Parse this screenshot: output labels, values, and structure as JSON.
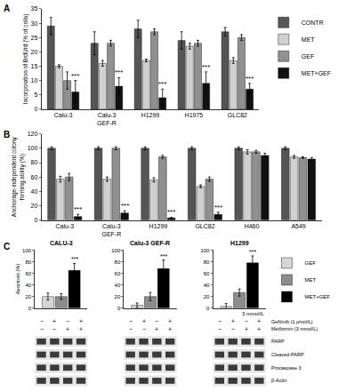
{
  "chart_data": [
    {
      "type": "bar",
      "panel_label": "A",
      "y_label": "Incorporation of BrdUrd (% of cells)",
      "categories": [
        "Calu-3",
        "Calu-3\nGEF-R",
        "H1299",
        "H1975",
        "GLC82"
      ],
      "series": [
        {
          "name": "CONTR",
          "color": "#555555",
          "values": [
            29,
            23,
            28,
            24,
            27
          ],
          "errors": [
            3,
            4,
            3,
            3,
            1.5
          ]
        },
        {
          "name": "MET",
          "color": "#d0d0d0",
          "values": [
            15,
            16,
            17,
            22,
            17
          ],
          "errors": [
            0.5,
            1,
            0.5,
            1,
            1
          ]
        },
        {
          "name": "GEF",
          "color": "#909090",
          "values": [
            10,
            23,
            27,
            23,
            25
          ],
          "errors": [
            3,
            1,
            1,
            1,
            1
          ]
        },
        {
          "name": "MET+GEF",
          "color": "#111111",
          "values": [
            6,
            8,
            4,
            9,
            7
          ],
          "errors": [
            4,
            3,
            3,
            4,
            2
          ],
          "annotations": [
            "***",
            "***",
            "***",
            "***",
            "***"
          ]
        }
      ],
      "ylim": [
        0,
        35
      ],
      "yticks": [
        0,
        5,
        10,
        15,
        20,
        25,
        30,
        35
      ],
      "legend": "right"
    },
    {
      "type": "bar",
      "panel_label": "B",
      "y_label": "Anchorage-independent colony\nforming ability (%)",
      "categories": [
        "Calu-3",
        "Calu-3\nGEF-R",
        "H1299",
        "GLC82",
        "H460",
        "A549"
      ],
      "series": [
        {
          "color": "#555555",
          "values": [
            100,
            100,
            100,
            100,
            100,
            100
          ],
          "errors": [
            2,
            2,
            2,
            2,
            2,
            2
          ]
        },
        {
          "color": "#d0d0d0",
          "values": [
            57,
            57,
            56,
            47,
            95,
            88
          ],
          "errors": [
            4,
            3,
            3,
            2,
            3,
            2
          ]
        },
        {
          "color": "#909090",
          "values": [
            60,
            100,
            88,
            57,
            95,
            87
          ],
          "errors": [
            5,
            2,
            2,
            3,
            2,
            1
          ]
        },
        {
          "color": "#111111",
          "values": [
            5,
            10,
            3,
            8,
            90,
            85
          ],
          "errors": [
            3,
            3,
            1,
            3,
            3,
            2
          ],
          "annotations": [
            "***",
            "***",
            "***",
            "***",
            null,
            null
          ]
        }
      ],
      "ylim": [
        0,
        120
      ],
      "yticks": [
        0,
        20,
        40,
        60,
        80,
        100,
        120
      ]
    },
    {
      "type": "bar",
      "panel_label": "C",
      "title": "CALU-3",
      "y_label": "Apoptosis (%)",
      "series": [
        {
          "color": "#d6d6d6",
          "values": [
            20
          ],
          "errors": [
            6
          ]
        },
        {
          "color": "#8c8c8c",
          "values": [
            20
          ],
          "errors": [
            5
          ]
        },
        {
          "color": "#000000",
          "values": [
            65
          ],
          "errors": [
            12
          ],
          "annotations": [
            "***"
          ]
        }
      ],
      "ylim": [
        0,
        100
      ],
      "yticks": [
        0,
        20,
        40,
        60,
        80,
        100
      ],
      "tick_labels": "y"
    },
    {
      "type": "bar",
      "title": "Calu-3 GEF-R",
      "series": [
        {
          "color": "#d6d6d6",
          "values": [
            5
          ],
          "errors": [
            4
          ]
        },
        {
          "color": "#8c8c8c",
          "values": [
            20
          ],
          "errors": [
            7
          ]
        },
        {
          "color": "#000000",
          "values": [
            68
          ],
          "errors": [
            15
          ],
          "annotations": [
            "***"
          ]
        }
      ],
      "ylim": [
        0,
        100
      ],
      "yticks": [
        0,
        20,
        40,
        60,
        80,
        100
      ],
      "tick_labels": "y"
    },
    {
      "type": "bar",
      "title": "H1299",
      "series": [
        {
          "name": "GEF",
          "color": "#d6d6d6",
          "values": [
            3
          ],
          "errors": [
            5
          ]
        },
        {
          "name": "MET",
          "color": "#8c8c8c",
          "values": [
            27
          ],
          "errors": [
            6
          ]
        },
        {
          "name": "MET+GEF",
          "color": "#000000",
          "values": [
            78
          ],
          "errors": [
            12
          ],
          "annotations": [
            "***"
          ]
        }
      ],
      "ylim": [
        0,
        100
      ],
      "yticks": [
        0,
        20,
        40,
        60,
        80,
        100
      ],
      "tick_labels": "y",
      "legend": "right",
      "annotations": [
        {
          "text": "3 mmol/L"
        }
      ]
    }
  ],
  "blots": {
    "treatments": [
      {
        "label": "Gefitinib (1 μmol/L)",
        "signs": [
          "−",
          "+",
          "−",
          "+"
        ]
      },
      {
        "label": "Metformin (3 mmol/L)",
        "signs": [
          "−",
          "−",
          "+",
          "+"
        ]
      }
    ],
    "bands": [
      "PARP",
      "Cleaved-PARP",
      "Procaspase 3",
      "β-Actin"
    ]
  }
}
